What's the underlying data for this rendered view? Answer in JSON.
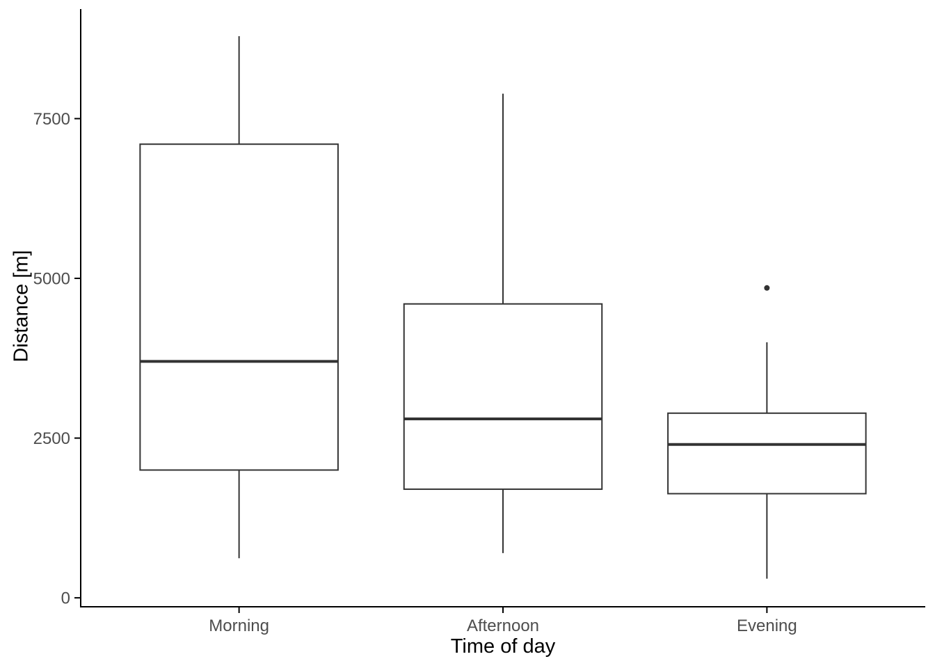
{
  "figure": {
    "background": "#FFFFFF"
  },
  "chart_data": {
    "type": "boxplot",
    "title": "",
    "xlabel": "Time of day",
    "ylabel": "Distance [m]",
    "categories": [
      "Morning",
      "Afternoon",
      "Evening"
    ],
    "series": [
      {
        "name": "Morning",
        "whisker_low": 620,
        "q1": 2000,
        "median": 3700,
        "q3": 7100,
        "whisker_high": 8790,
        "outliers": []
      },
      {
        "name": "Afternoon",
        "whisker_low": 700,
        "q1": 1700,
        "median": 2800,
        "q3": 4600,
        "whisker_high": 7890,
        "outliers": []
      },
      {
        "name": "Evening",
        "whisker_low": 300,
        "q1": 1630,
        "median": 2400,
        "q3": 2890,
        "whisker_high": 4000,
        "outliers": [
          4850
        ]
      }
    ],
    "x_positions": [
      1,
      2,
      3
    ],
    "box_width": 0.75,
    "y_ticks": [
      0,
      2500,
      5000,
      7500
    ],
    "y_tick_labels": [
      "0",
      "2500",
      "5000",
      "7500"
    ],
    "ylim": [
      -140,
      9215
    ],
    "xlim": [
      0.4,
      3.6
    ],
    "grid": false,
    "legend": false
  },
  "style": {
    "box_border_color": "#333333",
    "box_fill_color": "#FFFFFF",
    "median_color": "#333333",
    "whisker_color": "#333333",
    "outlier_color": "#333333",
    "axis_line_color": "#000000",
    "tick_label_color": "#4D4D4D",
    "axis_title_color": "#000000"
  }
}
